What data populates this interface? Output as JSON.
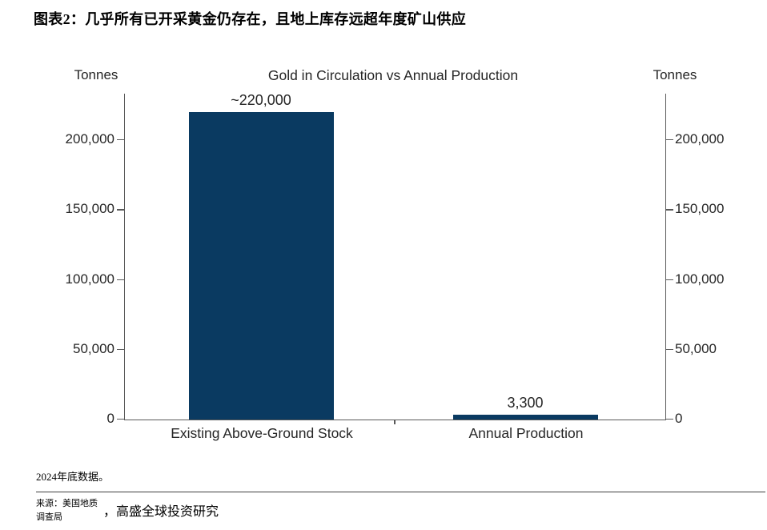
{
  "header": {
    "title": "图表2：几乎所有已开采黄金仍存在，且地上库存远超年度矿山供应"
  },
  "chart_data": {
    "type": "bar",
    "title": "Gold in Circulation vs Annual Production",
    "left_axis_title": "Tonnes",
    "right_axis_title": "Tonnes",
    "categories": [
      "Existing Above-Ground Stock",
      "Annual Production"
    ],
    "values": [
      220000,
      3300
    ],
    "value_labels": [
      "~220,000",
      "3,300"
    ],
    "y_ticks": [
      0,
      50000,
      100000,
      150000,
      200000
    ],
    "y_tick_labels": [
      "0",
      "50,000",
      "100,000",
      "150,000",
      "200,000"
    ],
    "ylim": [
      0,
      233000
    ],
    "xlabel": "",
    "grid": false,
    "legend": "none",
    "bar_color": "#0a3a61",
    "axis_color": "#595959"
  },
  "footnote": {
    "text": "2024年底数据。"
  },
  "source": {
    "line1": "来源：美国地质",
    "line2": "调查局",
    "separator": "，",
    "org": "高盛全球投资研究"
  }
}
